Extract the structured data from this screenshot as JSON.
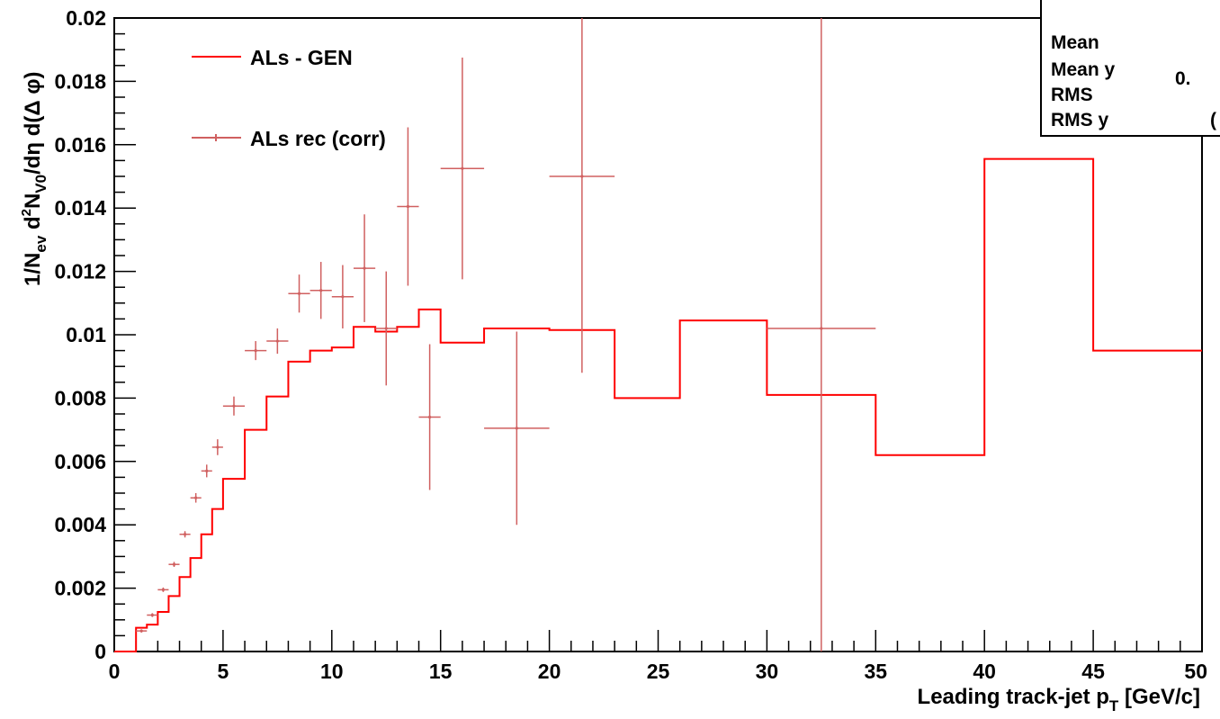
{
  "chart_data": {
    "type": "line",
    "xlabel": "Leading track-jet p",
    "xlabel_sub": "T",
    "xlabel_unit": " [GeV/c]",
    "ylabel": "1/N_ev d²N_V0/dη d(Δ φ)",
    "xlim": [
      0,
      50
    ],
    "ylim": [
      0,
      0.02
    ],
    "x_ticks": [
      "0",
      "5",
      "10",
      "15",
      "20",
      "25",
      "30",
      "35",
      "40",
      "45",
      "50"
    ],
    "y_ticks": [
      "0",
      "0.002",
      "0.004",
      "0.006",
      "0.008",
      "0.01",
      "0.012",
      "0.014",
      "0.016",
      "0.018",
      "0.02"
    ],
    "grid": false,
    "legend_position": "top-left",
    "stats_box": {
      "labels": [
        "Mean",
        "Mean y",
        "RMS",
        "RMS y"
      ],
      "values_visible": [
        "",
        "0.",
        "",
        "("
      ]
    },
    "series": [
      {
        "name": "ALs - GEN",
        "style": "histogram",
        "color": "#ff0000",
        "bins": [
          [
            0,
            1,
            0.0
          ],
          [
            1,
            1.5,
            0.00075
          ],
          [
            1.5,
            2,
            0.00085
          ],
          [
            2,
            2.5,
            0.00125
          ],
          [
            2.5,
            3,
            0.00175
          ],
          [
            3,
            3.5,
            0.00235
          ],
          [
            3.5,
            4,
            0.00295
          ],
          [
            4,
            4.5,
            0.0037
          ],
          [
            4.5,
            5,
            0.0045
          ],
          [
            5,
            6,
            0.00545
          ],
          [
            6,
            7,
            0.007
          ],
          [
            7,
            8,
            0.00805
          ],
          [
            8,
            9,
            0.00915
          ],
          [
            9,
            10,
            0.0095
          ],
          [
            10,
            11,
            0.0096
          ],
          [
            11,
            12,
            0.01025
          ],
          [
            12,
            13,
            0.0101
          ],
          [
            13,
            14,
            0.01025
          ],
          [
            14,
            15,
            0.0108
          ],
          [
            15,
            17,
            0.00975
          ],
          [
            17,
            20,
            0.0102
          ],
          [
            20,
            23,
            0.01015
          ],
          [
            23,
            26,
            0.008
          ],
          [
            26,
            30,
            0.01045
          ],
          [
            30,
            35,
            0.0081
          ],
          [
            35,
            40,
            0.0062
          ],
          [
            40,
            45,
            0.01555
          ],
          [
            45,
            50,
            0.0095
          ]
        ]
      },
      {
        "name": "ALs rec (corr)",
        "style": "errorbars",
        "color": "#d06060",
        "points": [
          [
            1.25,
            0.00065,
            0.25,
            5e-05
          ],
          [
            1.75,
            0.00115,
            0.25,
            6e-05
          ],
          [
            2.25,
            0.00195,
            0.25,
            7e-05
          ],
          [
            2.75,
            0.00275,
            0.25,
            8e-05
          ],
          [
            3.25,
            0.0037,
            0.25,
            0.0001
          ],
          [
            3.75,
            0.00485,
            0.25,
            0.00015
          ],
          [
            4.25,
            0.0057,
            0.25,
            0.0002
          ],
          [
            4.75,
            0.00645,
            0.25,
            0.00025
          ],
          [
            5.5,
            0.00775,
            0.5,
            0.0003
          ],
          [
            6.5,
            0.0095,
            0.5,
            0.0003
          ],
          [
            7.5,
            0.0098,
            0.5,
            0.0004
          ],
          [
            8.5,
            0.0113,
            0.5,
            0.0006
          ],
          [
            9.5,
            0.0114,
            0.5,
            0.0009
          ],
          [
            10.5,
            0.0112,
            0.5,
            0.001
          ],
          [
            11.5,
            0.0121,
            0.5,
            0.0017
          ],
          [
            12.5,
            0.0102,
            0.5,
            0.0018
          ],
          [
            13.5,
            0.01405,
            0.5,
            0.0025
          ],
          [
            14.5,
            0.0074,
            0.5,
            0.0023
          ],
          [
            16.0,
            0.01525,
            1.0,
            0.0035
          ],
          [
            18.5,
            0.00705,
            1.5,
            0.00305
          ],
          [
            21.5,
            0.015,
            1.5,
            0.0062
          ],
          [
            32.5,
            0.0102,
            2.5,
            0.0102
          ]
        ]
      }
    ]
  }
}
